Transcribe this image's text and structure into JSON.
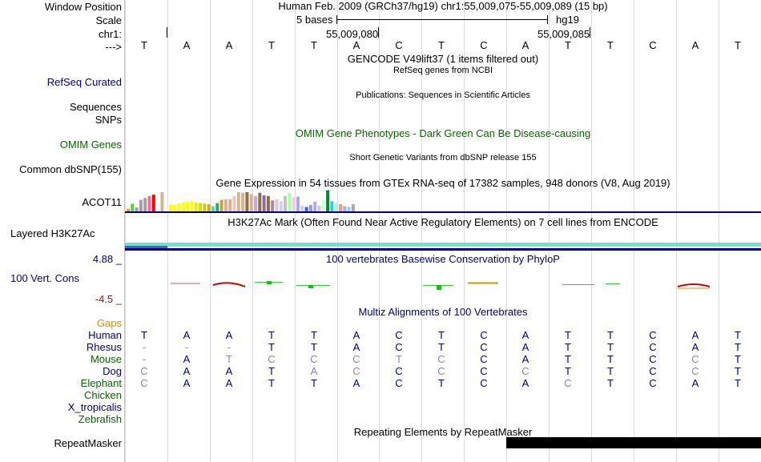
{
  "header": {
    "window_position_label": "Window Position",
    "scale_label": "Scale",
    "chrom_label": "chr1:",
    "strand_label": "--->",
    "window_position_text": "Human Feb. 2009 (GRCh37/hg19)   chr1:55,009,075-55,009,089 (15 bp)",
    "scale_text": "5 bases",
    "assembly_text": "hg19",
    "coord_tick_1": "55,009,080",
    "coord_tick_2": "55,009,085"
  },
  "bases": [
    "T",
    "A",
    "A",
    "T",
    "T",
    "A",
    "C",
    "T",
    "C",
    "A",
    "T",
    "T",
    "C",
    "A",
    "T"
  ],
  "tracks": {
    "gencode_title": "GENCODE V49lift37 (1 items filtered out)",
    "refseq_label": "RefSeq Curated",
    "refseq_title": "RefSeq genes from NCBI",
    "sequences_label": "Sequences",
    "publications_title": "Publications: Sequences in Scientific Articles",
    "snps_label": "SNPs",
    "omim_pheno_title": "OMIM Gene Phenotypes - Dark Green Can Be Disease-causing",
    "omim_genes_label": "OMIM Genes",
    "dbsnp_title": "Short Genetic Variants from dbSNP release 155",
    "dbsnp_label": "Common dbSNP(155)",
    "gtex_title": "Gene Expression in 54 tissues from GTEx RNA-seq of 17382 samples, 948 donors (V8, Aug 2019)",
    "gtex_label": "ACOT11",
    "h3k27ac_title": "H3K27Ac Mark (Often Found Near Active Regulatory Elements) on 7 cell lines from ENCODE",
    "h3k27ac_label": "Layered H3K27Ac",
    "phylop_max": "4.88 _",
    "phylop_min": "-4.5 _",
    "phylop_label": "100 Vert. Cons",
    "phylop_title": "100 vertebrates Basewise Conservation by PhyloP",
    "multiz_title": "Multiz Alignments of 100 Vertebrates",
    "gaps_label": "Gaps",
    "repeat_title": "Repeating Elements by RepeatMasker",
    "repeat_label": "RepeatMasker"
  },
  "species": [
    {
      "name": "Human",
      "bases": [
        "T",
        "A",
        "A",
        "T",
        "T",
        "A",
        "C",
        "T",
        "C",
        "A",
        "T",
        "T",
        "C",
        "A",
        "T"
      ],
      "match": [
        1,
        1,
        1,
        1,
        1,
        1,
        1,
        1,
        1,
        1,
        1,
        1,
        1,
        1,
        1
      ]
    },
    {
      "name": "Rhesus",
      "bases": [
        "-",
        "-",
        "-",
        "T",
        "T",
        "A",
        "C",
        "T",
        "C",
        "A",
        "T",
        "T",
        "C",
        "A",
        "T"
      ],
      "match": [
        0,
        0,
        0,
        1,
        1,
        1,
        1,
        1,
        1,
        1,
        1,
        1,
        1,
        1,
        1
      ]
    },
    {
      "name": "Mouse",
      "bases": [
        "-",
        "A",
        "T",
        "C",
        "C",
        "C",
        "T",
        "C",
        "C",
        "A",
        "T",
        "T",
        "C",
        "C",
        "T"
      ],
      "match": [
        0,
        1,
        0,
        0,
        0,
        0,
        0,
        0,
        1,
        1,
        1,
        1,
        1,
        0,
        1
      ]
    },
    {
      "name": "Dog",
      "bases": [
        "C",
        "A",
        "A",
        "T",
        "A",
        "C",
        "C",
        "C",
        "C",
        "C",
        "T",
        "T",
        "C",
        "C",
        "T"
      ],
      "match": [
        0,
        1,
        1,
        1,
        0,
        0,
        1,
        0,
        1,
        0,
        1,
        1,
        1,
        0,
        1
      ]
    },
    {
      "name": "Elephant",
      "bases": [
        "C",
        "A",
        "A",
        "T",
        "T",
        "A",
        "C",
        "T",
        "C",
        "A",
        "C",
        "T",
        "C",
        "A",
        "T"
      ],
      "match": [
        0,
        1,
        1,
        1,
        1,
        1,
        1,
        1,
        1,
        1,
        0,
        1,
        1,
        1,
        1
      ]
    },
    {
      "name": "Chicken",
      "bases": [],
      "match": []
    },
    {
      "name": "X_tropicalis",
      "bases": [],
      "match": []
    },
    {
      "name": "Zebrafish",
      "bases": [],
      "match": []
    }
  ],
  "gtex_colors": [
    "#ff9900",
    "#66cc33",
    "#a0a0a0",
    "#a0a0a0",
    "#a0a0a0",
    "#ff6699",
    "#ff0000",
    "#ffffff",
    "#d9b38c",
    "#ffffff",
    "#ffff00",
    "#ffff00",
    "#ffff00",
    "#ffff00",
    "#ffff00",
    "#ffff00",
    "#eeee00",
    "#dddd00",
    "#cccc00",
    "#bbbb00",
    "#66cccc",
    "#33aa66",
    "#bbaa44",
    "#d9b38c",
    "#d9b38c",
    "#e8c8c0",
    "#d9b38c",
    "#d9b38c",
    "#8b6f47",
    "#d9b38c",
    "#c8a8d8",
    "#8b6f47",
    "#996699",
    "#8b6f47",
    "#aa88aa",
    "#d0d0d0",
    "#ccccff",
    "#c0c0c0",
    "#aaffaa",
    "#ffcccc",
    "#aaaaff",
    "#d0d0d0",
    "#3366ff",
    "#9999cc",
    "#aaaaee",
    "#cccccc",
    "#ccffcc",
    "#008833",
    "#33cccc",
    "#aaeeee",
    "#ff9966",
    "#aaaaff",
    "#99ccff",
    "#aaaaaa"
  ],
  "gtex_values": [
    0.13,
    0.4,
    0.2,
    0.6,
    0.7,
    0.8,
    0.87,
    0.06,
    1.0,
    0.06,
    0.37,
    0.33,
    0.4,
    0.47,
    0.5,
    0.53,
    0.47,
    0.43,
    0.4,
    0.37,
    0.27,
    0.43,
    0.6,
    0.63,
    0.63,
    0.8,
    1.0,
    0.97,
    1.0,
    0.9,
    0.8,
    0.97,
    0.83,
    0.8,
    0.57,
    0.63,
    0.53,
    0.8,
    0.97,
    0.73,
    0.77,
    0.3,
    0.23,
    0.33,
    0.5,
    0.3,
    0.6,
    1.1,
    0.53,
    0.43,
    0.37,
    0.27,
    0.23,
    0.37
  ],
  "colors": {
    "navy": "#000080",
    "green": "#0a6400",
    "orange": "#e08c00",
    "h3k27ac_teal": "#6ee3d0",
    "h3k27ac_blue": "#4a5fc0",
    "repeat_black": "#000000"
  }
}
